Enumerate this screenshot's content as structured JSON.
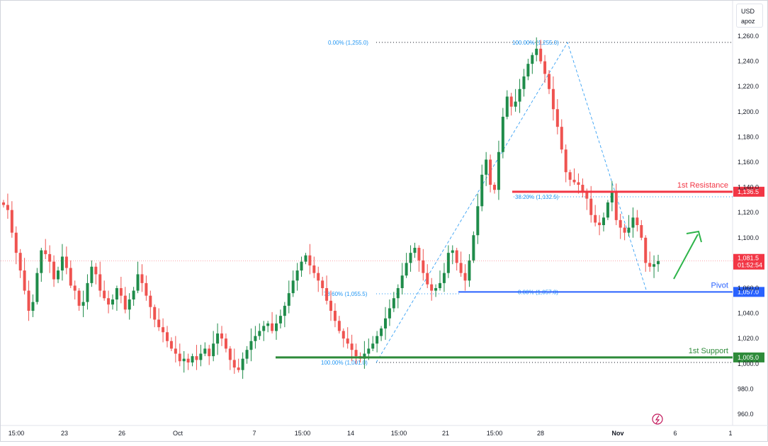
{
  "currency_selector": {
    "currency": "USD",
    "unit": "apoz"
  },
  "colors": {
    "up_candle": "#26a69a",
    "up_candle_chart": "#1f8c4a",
    "down_candle": "#ef5350",
    "resistance": "#f23645",
    "pivot": "#2962ff",
    "support": "#2e8b3a",
    "fib": "#2196f3",
    "current_price": "#f23645",
    "arrow": "#2eb44a"
  },
  "chart_data": {
    "type": "candlestick",
    "symbol_unit": "USD",
    "ylim": [
      950,
      1270
    ],
    "y_ticks": [
      "1,260.0",
      "1,240.0",
      "1,220.0",
      "1,200.0",
      "1,180.0",
      "1,160.0",
      "1,140.0",
      "1,120.0",
      "1,100.0",
      "1,080.0",
      "1,060.0",
      "1,040.0",
      "1,020.0",
      "1,000.0",
      "980.0",
      "960.0"
    ],
    "x_ticks": [
      "15:00",
      "23",
      "26",
      "Oct",
      "7",
      "15:00",
      "14",
      "15:00",
      "21",
      "15:00",
      "28",
      "Nov",
      "6",
      "1"
    ],
    "candles_close": [
      1126,
      1122,
      1104,
      1088,
      1074,
      1058,
      1042,
      1049,
      1072,
      1090,
      1087,
      1081,
      1067,
      1074,
      1085,
      1076,
      1062,
      1058,
      1046,
      1049,
      1064,
      1077,
      1071,
      1058,
      1052,
      1047,
      1051,
      1060,
      1054,
      1043,
      1051,
      1058,
      1071,
      1064,
      1054,
      1045,
      1035,
      1029,
      1025,
      1018,
      1012,
      1008,
      1002,
      1004,
      1001,
      1006,
      1003,
      1008,
      1012,
      1006,
      1016,
      1024,
      1020,
      1012,
      1003,
      997,
      995,
      1004,
      1011,
      1018,
      1022,
      1026,
      1030,
      1032,
      1026,
      1032,
      1038,
      1046,
      1056,
      1066,
      1074,
      1081,
      1086,
      1078,
      1072,
      1066,
      1060,
      1050,
      1042,
      1034,
      1026,
      1020,
      1016,
      1011,
      1006,
      1004,
      1008,
      1012,
      1016,
      1022,
      1028,
      1036,
      1044,
      1052,
      1060,
      1070,
      1080,
      1088,
      1092,
      1082,
      1072,
      1063,
      1058,
      1060,
      1064,
      1072,
      1088,
      1090,
      1080,
      1072,
      1066,
      1082,
      1102,
      1125,
      1150,
      1162,
      1142,
      1138,
      1168,
      1196,
      1212,
      1204,
      1208,
      1218,
      1228,
      1238,
      1245,
      1250,
      1240,
      1230,
      1218,
      1202,
      1188,
      1170,
      1152,
      1146,
      1144,
      1142,
      1136,
      1131,
      1118,
      1112,
      1110,
      1116,
      1128,
      1136,
      1114,
      1108,
      1104,
      1108,
      1116,
      1110,
      1100,
      1080,
      1077,
      1079,
      1081.5
    ],
    "current_price": "1,081.5",
    "countdown": "01:52:54",
    "levels": [
      {
        "name": "1st Resistance",
        "value": 1136.5,
        "label": "1,136.5"
      },
      {
        "name": "Pivot",
        "value": 1057.0,
        "label": "1,057.0"
      },
      {
        "name": "1st Support",
        "value": 1005.0,
        "label": "1,005.0"
      }
    ],
    "fib_labels": [
      {
        "text": "0.00% (1,255.0)",
        "value": 1255.0
      },
      {
        "text": "100.00% (1,255.0)",
        "value": 1255.0
      },
      {
        "text": "38.20% (1,132.5)",
        "value": 1132.5
      },
      {
        "text": "78.60% (1,055.5)",
        "value": 1055.5
      },
      {
        "text": "0.00% (1,057.0)",
        "value": 1057.0
      },
      {
        "text": "100.00% (1,001.0)",
        "value": 1001.0
      }
    ]
  }
}
